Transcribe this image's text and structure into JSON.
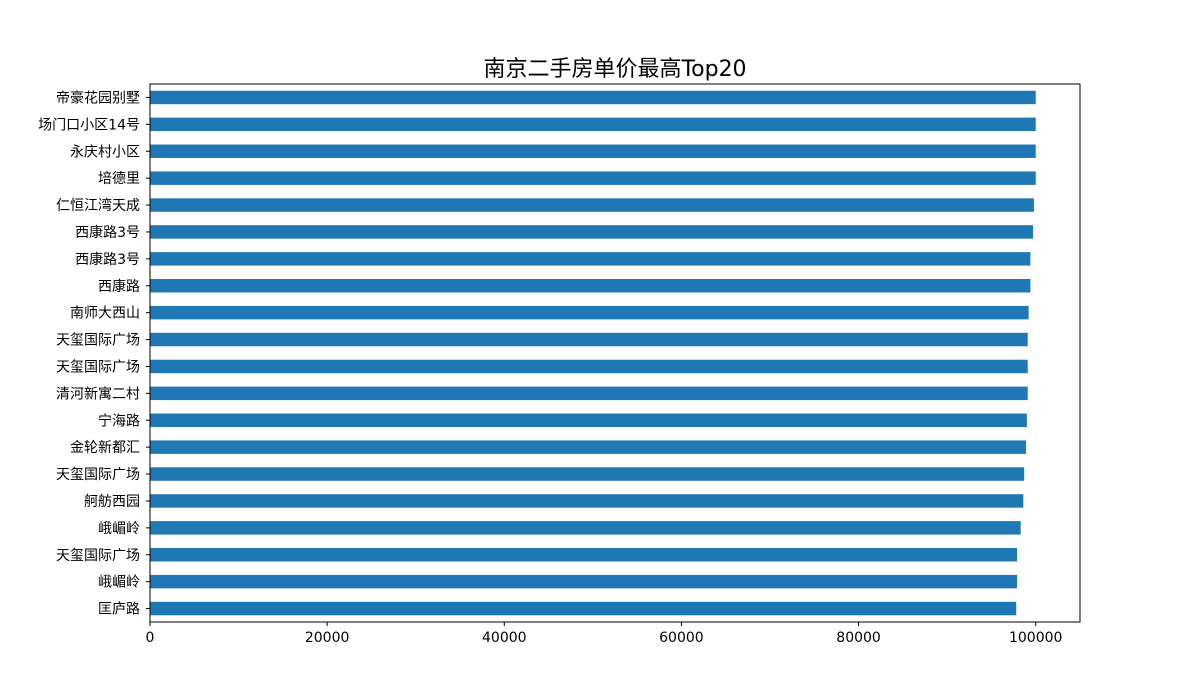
{
  "chart_data": {
    "type": "bar",
    "orientation": "horizontal",
    "title": "南京二手房单价最高Top20",
    "xlabel": "",
    "ylabel": "",
    "categories": [
      "帝豪花园别墅",
      "场门口小区14号",
      "永庆村小区",
      "培德里",
      "仁恒江湾天成",
      "西康路3号",
      "西康路3号",
      "西康路",
      "南师大西山",
      "天玺国际广场",
      "天玺国际广场",
      "清河新寓二村",
      "宁海路",
      "金轮新都汇",
      "天玺国际广场",
      "舸舫西园",
      "峨嵋岭",
      "天玺国际广场",
      "峨嵋岭",
      "匡庐路"
    ],
    "values": [
      100000,
      100000,
      100000,
      100000,
      99800,
      99700,
      99400,
      99400,
      99200,
      99100,
      99100,
      99100,
      99000,
      98900,
      98700,
      98600,
      98300,
      97900,
      97900,
      97800
    ],
    "xlim": [
      0,
      105000
    ],
    "xticks": [
      0,
      20000,
      40000,
      60000,
      80000,
      100000
    ],
    "xtick_labels": [
      "0",
      "20000",
      "40000",
      "60000",
      "80000",
      "100000"
    ],
    "bar_color": "#1f77b4",
    "grid": false,
    "legend": "none"
  }
}
